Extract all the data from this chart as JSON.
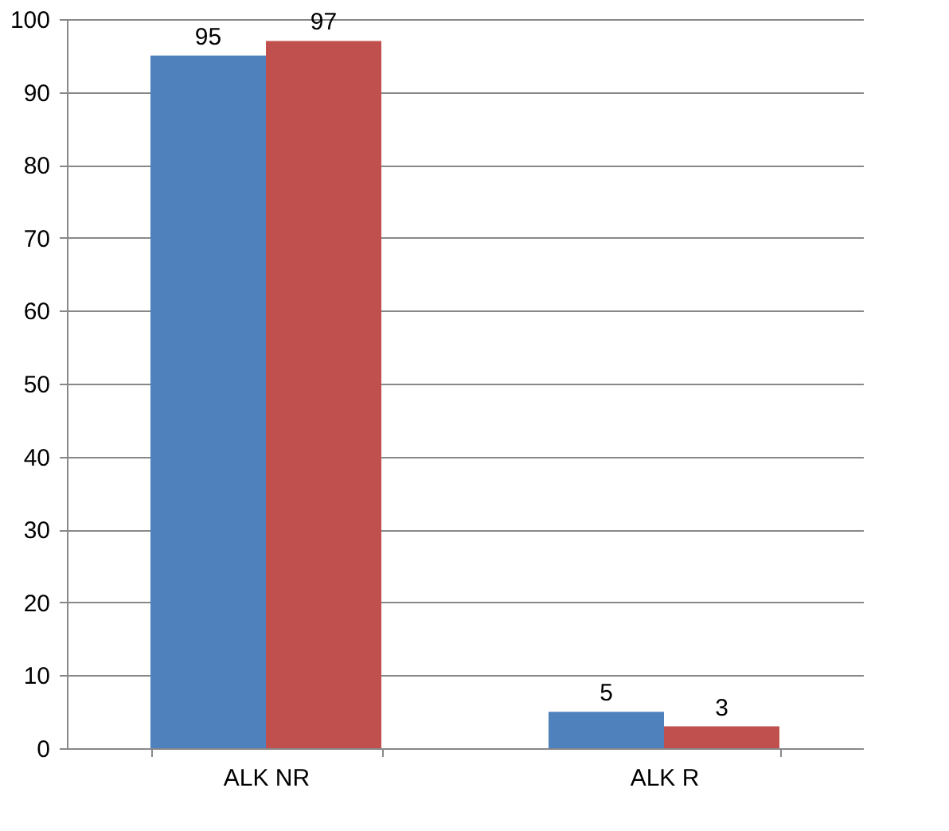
{
  "chart_data": {
    "type": "bar",
    "categories": [
      "ALK NR",
      "ALK R"
    ],
    "series": [
      {
        "color": "#4f81bd",
        "values": [
          95,
          5
        ]
      },
      {
        "color": "#c0504d",
        "values": [
          97,
          3
        ]
      }
    ],
    "ylim": [
      0,
      100
    ],
    "yticks": [
      0,
      10,
      20,
      30,
      40,
      50,
      60,
      70,
      80,
      90,
      100
    ],
    "grid": "y",
    "data_labels": true,
    "legend": false
  }
}
